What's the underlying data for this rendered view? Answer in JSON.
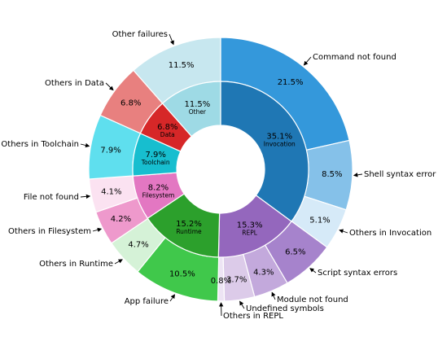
{
  "chart_data": {
    "type": "pie",
    "variant": "nested-donut",
    "inner_ring": [
      {
        "value": 35.1,
        "pct_label": "35.1%",
        "name": "Invocation",
        "color": "#1f77b4"
      },
      {
        "value": 15.3,
        "pct_label": "15.3%",
        "name": "REPL",
        "color": "#9467bd"
      },
      {
        "value": 15.2,
        "pct_label": "15.2%",
        "name": "Runtime",
        "color": "#2ca02c"
      },
      {
        "value": 8.2,
        "pct_label": "8.2%",
        "name": "Filesystem",
        "color": "#e377c2"
      },
      {
        "value": 7.9,
        "pct_label": "7.9%",
        "name": "Toolchain",
        "color": "#17becf"
      },
      {
        "value": 6.8,
        "pct_label": "6.8%",
        "name": "Data",
        "color": "#d62728"
      },
      {
        "value": 11.5,
        "pct_label": "11.5%",
        "name": "Other",
        "color": "#9edae5"
      }
    ],
    "outer_ring": [
      {
        "value": 21.5,
        "pct_label": "21.5%",
        "name": "Command not found",
        "color": "#3498db"
      },
      {
        "value": 8.5,
        "pct_label": "8.5%",
        "name": "Shell syntax error",
        "color": "#85c1e9"
      },
      {
        "value": 5.1,
        "pct_label": "5.1%",
        "name": "Others in Invocation",
        "color": "#d6eaf8"
      },
      {
        "value": 6.5,
        "pct_label": "6.5%",
        "name": "Script syntax errors",
        "color": "#a683cc"
      },
      {
        "value": 4.3,
        "pct_label": "4.3%",
        "name": "Module not found",
        "color": "#c3a9dc"
      },
      {
        "value": 3.7,
        "pct_label": "3.7%",
        "name": "Undefined symbols",
        "color": "#dccbe9"
      },
      {
        "value": 0.8,
        "pct_label": "0.8%",
        "name": "Others in REPL",
        "color": "#ede4f4"
      },
      {
        "value": 10.5,
        "pct_label": "10.5%",
        "name": "App failure",
        "color": "#40c84b"
      },
      {
        "value": 4.7,
        "pct_label": "4.7%",
        "name": "Others in Runtime",
        "color": "#d5f2d7"
      },
      {
        "value": 4.2,
        "pct_label": "4.2%",
        "name": "Others in Filesystem",
        "color": "#ee99cc"
      },
      {
        "value": 4.1,
        "pct_label": "4.1%",
        "name": "File not found",
        "color": "#fbe2f1"
      },
      {
        "value": 7.9,
        "pct_label": "7.9%",
        "name": "Others in Toolchain",
        "color": "#5fdfee"
      },
      {
        "value": 6.8,
        "pct_label": "6.8%",
        "name": "Others in Data",
        "color": "#e8807f"
      },
      {
        "value": 11.5,
        "pct_label": "11.5%",
        "name": "Other failures",
        "color": "#c7e7ef"
      }
    ]
  }
}
